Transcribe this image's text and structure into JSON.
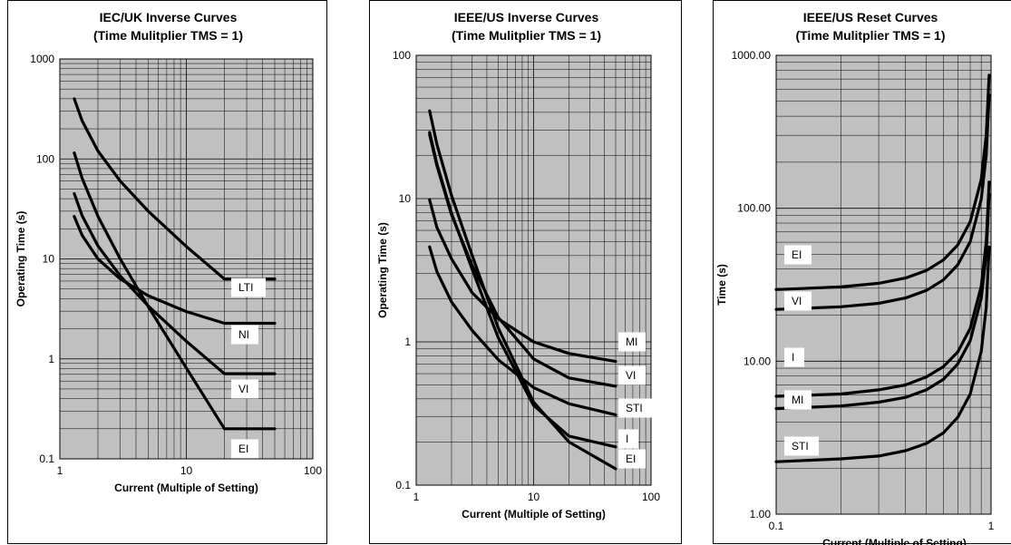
{
  "chart_data": [
    {
      "type": "line",
      "title": [
        "IEC/UK Inverse Curves",
        "(Time Mulitplier TMS = 1)"
      ],
      "xlabel": "Current (Multiple of Setting)",
      "ylabel": "Operating Time (s)",
      "xscale": "log",
      "yscale": "log",
      "xlim": [
        1,
        100
      ],
      "ylim": [
        0.1,
        1000
      ],
      "xticks": [
        "1",
        "10",
        "100"
      ],
      "yticks": [
        "0.1",
        "1",
        "10",
        "100",
        "1000"
      ],
      "grid": true,
      "series": [
        {
          "name": "LTI",
          "x": [
            1.3,
            1.5,
            2,
            3,
            5,
            10,
            20,
            50
          ],
          "y": [
            400,
            240,
            120,
            60,
            30,
            13.3,
            6.3,
            6.3
          ]
        },
        {
          "name": "NI",
          "x": [
            1.3,
            1.5,
            2,
            3,
            5,
            10,
            20,
            50
          ],
          "y": [
            26.6,
            17.2,
            10.0,
            6.3,
            4.28,
            2.97,
            2.27,
            2.27
          ]
        },
        {
          "name": "VI",
          "x": [
            1.3,
            1.5,
            2,
            3,
            5,
            10,
            20,
            50
          ],
          "y": [
            45,
            27,
            13.5,
            6.75,
            3.38,
            1.5,
            0.71,
            0.71
          ]
        },
        {
          "name": "EI",
          "x": [
            1.3,
            1.5,
            2,
            3,
            5,
            10,
            20,
            50
          ],
          "y": [
            115,
            64,
            26.7,
            10,
            3.33,
            0.81,
            0.2,
            0.2
          ]
        }
      ]
    },
    {
      "type": "line",
      "title": [
        "IEEE/US Inverse Curves",
        "(Time Mulitplier TMS = 1)"
      ],
      "xlabel": "Current (Multiple of Setting)",
      "ylabel": "Operating Time (s)",
      "xscale": "log",
      "yscale": "log",
      "xlim": [
        1,
        100
      ],
      "ylim": [
        0.1,
        100
      ],
      "xticks": [
        "1",
        "10",
        "100"
      ],
      "yticks": [
        "0.1",
        "1",
        "10",
        "100"
      ],
      "grid": true,
      "series": [
        {
          "name": "MI",
          "x": [
            1.3,
            1.5,
            2,
            3,
            5,
            10,
            20,
            50
          ],
          "y": [
            9.8,
            6.3,
            3.8,
            2.2,
            1.45,
            1.0,
            0.83,
            0.73
          ]
        },
        {
          "name": "VI",
          "x": [
            1.3,
            1.5,
            2,
            3,
            5,
            10,
            20,
            50
          ],
          "y": [
            28,
            17,
            7.7,
            3.4,
            1.48,
            0.76,
            0.56,
            0.49
          ]
        },
        {
          "name": "STI",
          "x": [
            1.3,
            1.5,
            2,
            3,
            5,
            10,
            20,
            50
          ],
          "y": [
            4.6,
            3.1,
            1.9,
            1.2,
            0.75,
            0.48,
            0.37,
            0.31
          ]
        },
        {
          "name": "I",
          "x": [
            1.3,
            1.5,
            2,
            3,
            5,
            10,
            20,
            50
          ],
          "y": [
            29,
            17.5,
            7.9,
            3.2,
            1.07,
            0.36,
            0.22,
            0.185
          ]
        },
        {
          "name": "EI",
          "x": [
            1.3,
            1.5,
            2,
            3,
            5,
            10,
            20,
            50
          ],
          "y": [
            41,
            24,
            10.5,
            4.0,
            1.25,
            0.38,
            0.2,
            0.13
          ]
        }
      ]
    },
    {
      "type": "line",
      "title": [
        "IEEE/US Reset Curves",
        "(Time Mulitplier TMS = 1)"
      ],
      "xlabel": "Current (Multiple of Setting)",
      "ylabel": "Time (s)",
      "xscale": "log",
      "yscale": "log",
      "xlim": [
        0.1,
        1
      ],
      "ylim": [
        1,
        1000
      ],
      "xticks": [
        "0.1",
        "1"
      ],
      "yticks": [
        "1.00",
        "10.00",
        "100.00",
        "1000.00"
      ],
      "grid": true,
      "series": [
        {
          "name": "EI",
          "x": [
            0.1,
            0.2,
            0.3,
            0.4,
            0.5,
            0.6,
            0.7,
            0.8,
            0.9,
            0.95,
            0.98
          ],
          "y": [
            29.4,
            30.6,
            32.3,
            35.0,
            39.2,
            45.9,
            57.6,
            81.7,
            154.7,
            301.5,
            742.4
          ]
        },
        {
          "name": "VI",
          "x": [
            0.1,
            0.2,
            0.3,
            0.4,
            0.5,
            0.6,
            0.7,
            0.8,
            0.9,
            0.95,
            0.98
          ],
          "y": [
            21.8,
            22.7,
            23.9,
            25.9,
            29.0,
            34.0,
            42.7,
            60.5,
            114.7,
            223.4,
            550.0
          ]
        },
        {
          "name": "I",
          "x": [
            0.1,
            0.2,
            0.3,
            0.4,
            0.5,
            0.6,
            0.7,
            0.8,
            0.9,
            0.95,
            0.98
          ],
          "y": [
            5.9,
            6.1,
            6.5,
            7.0,
            7.9,
            9.2,
            11.5,
            16.4,
            31.0,
            60.3,
            148.5
          ]
        },
        {
          "name": "MI",
          "x": [
            0.1,
            0.2,
            0.3,
            0.4,
            0.5,
            0.6,
            0.7,
            0.8,
            0.9,
            0.95,
            0.98
          ],
          "y": [
            4.9,
            5.1,
            5.4,
            5.8,
            6.5,
            7.6,
            9.6,
            13.6,
            25.8,
            50.2,
            123.8
          ]
        },
        {
          "name": "STI",
          "x": [
            0.1,
            0.2,
            0.3,
            0.4,
            0.5,
            0.6,
            0.7,
            0.8,
            0.9,
            0.95,
            0.98
          ],
          "y": [
            2.2,
            2.3,
            2.4,
            2.6,
            2.9,
            3.4,
            4.3,
            6.1,
            11.6,
            22.6,
            55.7
          ]
        }
      ]
    }
  ]
}
